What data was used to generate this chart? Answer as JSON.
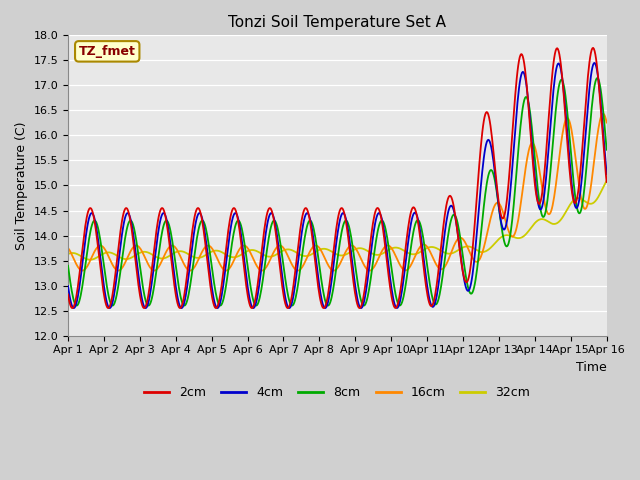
{
  "title": "Tonzi Soil Temperature Set A",
  "xlabel": "Time",
  "ylabel": "Soil Temperature (C)",
  "ylim": [
    12.0,
    18.0
  ],
  "xlim": [
    0,
    15
  ],
  "yticks": [
    12.0,
    12.5,
    13.0,
    13.5,
    14.0,
    14.5,
    15.0,
    15.5,
    16.0,
    16.5,
    17.0,
    17.5,
    18.0
  ],
  "xtick_labels": [
    "Apr 1",
    "Apr 2",
    "Apr 3",
    "Apr 4",
    "Apr 5",
    "Apr 6",
    "Apr 7",
    "Apr 8",
    "Apr 9",
    "Apr 10",
    "Apr 11",
    "Apr 12",
    "Apr 13",
    "Apr 14",
    "Apr 15",
    "Apr 16"
  ],
  "colors": {
    "2cm": "#dd0000",
    "4cm": "#0000cc",
    "8cm": "#00aa00",
    "16cm": "#ff8800",
    "32cm": "#cccc00"
  },
  "annotation": "TZ_fmet",
  "annotation_color": "#880000",
  "annotation_bg": "#ffffcc",
  "annotation_border": "#aa8800",
  "fig_bg": "#d0d0d0",
  "plot_bg": "#e8e8e8",
  "grid_color": "#ffffff",
  "n_points": 720,
  "transition_day": 11.5,
  "series_labels": [
    "2cm",
    "4cm",
    "8cm",
    "16cm",
    "32cm"
  ]
}
